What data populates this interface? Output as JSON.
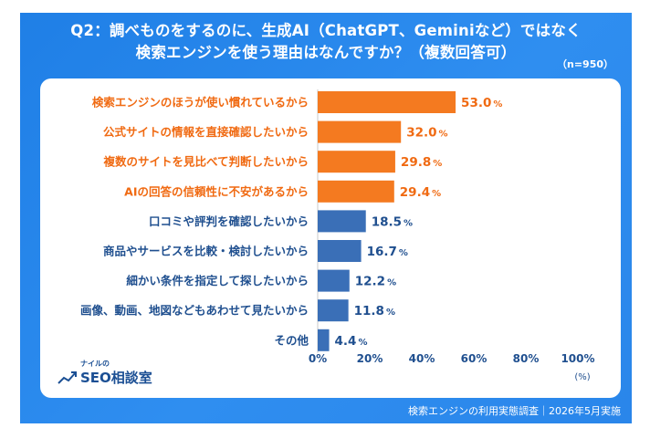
{
  "header": {
    "title_line1": "Q2：調べものをするのに、生成AI（ChatGPT、Geminiなど）ではなく",
    "title_line2": "検索エンジンを使う理由はなんですか？（複数回答可）",
    "sample_size": "（n=950）"
  },
  "footer": {
    "source": "検索エンジンの利用実態調査｜2026年5月実施"
  },
  "logo": {
    "small_text": "ナイルの",
    "main_text": "SEO相談室"
  },
  "colors": {
    "top_bar": "#f47a20",
    "other_bar": "#3a6fb7",
    "top_label": "#f06a12",
    "other_label": "#1f4f8f",
    "background": "#2a86ea"
  },
  "chart_data": {
    "type": "bar",
    "orientation": "horizontal",
    "categories": [
      "検索エンジンのほうが使い慣れているから",
      "公式サイトの情報を直接確認したいから",
      "複数のサイトを見比べて判断したいから",
      "AIの回答の信頼性に不安があるから",
      "口コミや評判を確認したいから",
      "商品やサービスを比較・検討したいから",
      "細かい条件を指定して探したいから",
      "画像、動画、地図などもあわせて見たいから",
      "その他"
    ],
    "values": [
      53.0,
      32.0,
      29.8,
      29.4,
      18.5,
      16.7,
      12.2,
      11.8,
      4.4
    ],
    "highlight_top": 4,
    "value_suffix": "%",
    "xlim": [
      0,
      100
    ],
    "xticks": [
      0,
      20,
      40,
      60,
      80,
      100
    ],
    "xtick_suffix": "%",
    "xlabel": "(%)"
  }
}
